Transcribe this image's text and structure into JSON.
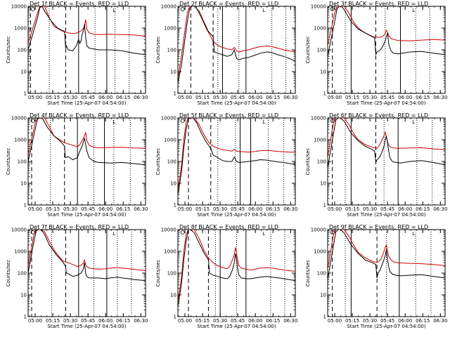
{
  "colors": {
    "events": "#000000",
    "lld": "#d00000",
    "frame": "#000000"
  },
  "chart_data": {
    "type": "line",
    "layout": "3x3 grid of panels",
    "yscale": "log",
    "ylim": [
      1,
      10000
    ],
    "yticks": [
      "1",
      "10",
      "100",
      "1000",
      "10000"
    ],
    "ylabel": "Counts/sec",
    "xlabel": "Start Time (25-Apr-07 04:54:00)",
    "xlim_min": [
      0,
      100
    ],
    "xticks": [
      {
        "label": "05:00",
        "t": 6
      },
      {
        "label": "05:15",
        "t": 21
      },
      {
        "label": "05:30",
        "t": 36
      },
      {
        "label": "05:45",
        "t": 51
      },
      {
        "label": "06:00",
        "t": 66
      },
      {
        "label": "06:15",
        "t": 81
      },
      {
        "label": "06:30",
        "t": 96
      }
    ],
    "legend_text": "BLACK = Events, RED = LLD",
    "series_names": [
      "Events",
      "LLD"
    ],
    "panels": [
      {
        "title": "Det 1f",
        "marker": "L",
        "dashed": [
          2,
          32
        ],
        "dotted": [
          18,
          57,
          74,
          86
        ],
        "solid": [
          43,
          67
        ],
        "events_t": [
          0,
          8,
          10,
          12,
          14,
          20,
          25,
          31,
          32,
          32.6,
          34,
          38,
          41,
          43,
          44,
          45,
          46,
          47,
          48,
          49,
          50,
          52,
          56,
          60,
          70,
          80,
          90,
          100
        ],
        "events_v": [
          100,
          3000,
          9000,
          10000,
          6000,
          2000,
          1000,
          700,
          120,
          150,
          100,
          90,
          150,
          300,
          200,
          260,
          500,
          700,
          1500,
          400,
          150,
          120,
          110,
          100,
          100,
          90,
          70,
          60
        ],
        "lld_t": [
          0,
          8,
          10,
          12,
          14,
          18,
          22,
          26,
          30,
          34,
          40,
          43,
          46,
          48,
          49,
          50,
          52,
          56,
          60,
          70,
          80,
          90,
          100
        ],
        "lld_v": [
          200,
          5000,
          10000,
          10000,
          10000,
          3000,
          1200,
          900,
          700,
          600,
          550,
          650,
          800,
          1200,
          2500,
          900,
          600,
          520,
          500,
          520,
          500,
          480,
          430
        ]
      },
      {
        "title": "Det 2f",
        "marker": "L",
        "dashed": [
          11,
          30
        ],
        "dotted": [
          34,
          52,
          80,
          92
        ],
        "solid": [
          38,
          58
        ],
        "events_t": [
          0,
          3,
          6,
          8,
          10,
          12,
          14,
          18,
          22,
          26,
          30,
          31,
          34,
          38,
          42,
          46,
          48,
          50,
          52,
          55,
          60,
          65,
          70,
          76,
          80,
          85,
          90,
          95,
          100
        ],
        "events_v": [
          3,
          20,
          300,
          2000,
          8000,
          10000,
          10000,
          6000,
          2000,
          700,
          400,
          80,
          70,
          60,
          50,
          60,
          100,
          40,
          35,
          40,
          45,
          55,
          70,
          80,
          75,
          60,
          50,
          40,
          30
        ],
        "lld_t": [
          0,
          3,
          6,
          8,
          10,
          12,
          14,
          16,
          20,
          24,
          28,
          30,
          34,
          38,
          42,
          46,
          48,
          50,
          52,
          56,
          60,
          65,
          70,
          76,
          80,
          85,
          90,
          95,
          100
        ],
        "lld_v": [
          5,
          50,
          800,
          5000,
          10000,
          10000,
          10000,
          8000,
          3000,
          1000,
          400,
          250,
          160,
          130,
          110,
          100,
          130,
          90,
          80,
          90,
          100,
          120,
          140,
          150,
          140,
          120,
          100,
          90,
          80
        ]
      },
      {
        "title": "Det 3f",
        "marker": "L",
        "dashed": [
          4,
          41
        ],
        "dotted": [
          15,
          49,
          75,
          87
        ],
        "solid": [
          20,
          62
        ],
        "events_t": [
          0,
          6,
          8,
          10,
          12,
          14,
          20,
          26,
          32,
          38,
          40,
          41,
          42,
          45,
          47,
          49,
          50,
          51,
          52,
          53,
          54,
          56,
          60,
          70,
          80,
          90,
          100
        ],
        "events_v": [
          50,
          2000,
          8000,
          10000,
          10000,
          7000,
          2000,
          900,
          600,
          400,
          350,
          60,
          80,
          100,
          150,
          250,
          400,
          600,
          200,
          120,
          90,
          70,
          65,
          80,
          85,
          70,
          60
        ],
        "lld_t": [
          0,
          6,
          8,
          10,
          12,
          14,
          18,
          22,
          26,
          32,
          38,
          44,
          47,
          49,
          50,
          51,
          52,
          54,
          56,
          60,
          70,
          80,
          90,
          100
        ],
        "lld_v": [
          150,
          5000,
          10000,
          10000,
          10000,
          10000,
          5000,
          2000,
          1000,
          600,
          420,
          370,
          420,
          550,
          800,
          650,
          450,
          330,
          300,
          270,
          260,
          280,
          300,
          280
        ]
      },
      {
        "title": "Det 4f",
        "marker": "L",
        "dashed": [
          3,
          31
        ],
        "dotted": [
          19,
          56,
          73,
          87
        ],
        "solid": [
          42,
          65
        ],
        "events_t": [
          0,
          6,
          8,
          10,
          12,
          16,
          22,
          28,
          31,
          31.6,
          34,
          38,
          42,
          44,
          46,
          48,
          50,
          52,
          56,
          60,
          70,
          80,
          90,
          100
        ],
        "events_v": [
          100,
          3000,
          9000,
          10000,
          10000,
          4000,
          1500,
          800,
          500,
          150,
          170,
          120,
          150,
          300,
          500,
          1200,
          300,
          150,
          100,
          90,
          85,
          90,
          80,
          70
        ],
        "lld_t": [
          0,
          6,
          8,
          10,
          14,
          18,
          22,
          28,
          32,
          38,
          42,
          44,
          46,
          48,
          49,
          50,
          52,
          56,
          60,
          70,
          80,
          90,
          100
        ],
        "lld_v": [
          200,
          6000,
          10000,
          10000,
          10000,
          4000,
          1500,
          900,
          700,
          550,
          480,
          600,
          900,
          1500,
          2200,
          900,
          550,
          450,
          430,
          440,
          450,
          420,
          400
        ]
      },
      {
        "title": "Det 5f",
        "marker": "L",
        "dashed": [
          9,
          28
        ],
        "dotted": [
          34,
          49,
          77,
          90
        ],
        "solid": [
          53,
          62
        ],
        "events_t": [
          0,
          3,
          5,
          7,
          9,
          11,
          13,
          16,
          20,
          24,
          28,
          30,
          34,
          38,
          42,
          46,
          48,
          50,
          52,
          56,
          60,
          66,
          70,
          76,
          80,
          86,
          90,
          95,
          100
        ],
        "events_v": [
          3,
          30,
          400,
          3000,
          9000,
          10000,
          10000,
          6000,
          2000,
          800,
          400,
          200,
          150,
          110,
          100,
          100,
          160,
          100,
          90,
          95,
          100,
          110,
          120,
          115,
          105,
          95,
          90,
          80,
          75
        ],
        "lld_t": [
          0,
          3,
          5,
          7,
          9,
          11,
          14,
          18,
          22,
          26,
          30,
          34,
          38,
          42,
          46,
          48,
          50,
          52,
          56,
          60,
          66,
          70,
          76,
          80,
          86,
          90,
          95,
          100
        ],
        "lld_v": [
          5,
          60,
          1000,
          6000,
          10000,
          10000,
          10000,
          5000,
          1800,
          800,
          500,
          400,
          350,
          320,
          300,
          360,
          300,
          290,
          280,
          270,
          290,
          310,
          320,
          310,
          290,
          280,
          270,
          260
        ]
      },
      {
        "title": "Det 6f",
        "marker": "L",
        "dashed": [
          4,
          41
        ],
        "dotted": [
          15,
          48,
          76,
          89
        ],
        "solid": [
          20,
          60
        ],
        "events_t": [
          0,
          5,
          7,
          9,
          11,
          14,
          20,
          26,
          32,
          38,
          40,
          41,
          42,
          44,
          46,
          48,
          49,
          50,
          51,
          52,
          53,
          55,
          58,
          62,
          70,
          80,
          90,
          100
        ],
        "events_v": [
          50,
          2000,
          8000,
          10000,
          10000,
          7000,
          2000,
          900,
          500,
          350,
          300,
          90,
          120,
          150,
          250,
          500,
          900,
          1500,
          700,
          300,
          150,
          100,
          90,
          85,
          100,
          110,
          90,
          70
        ],
        "lld_t": [
          0,
          5,
          7,
          9,
          11,
          14,
          18,
          22,
          26,
          32,
          38,
          42,
          44,
          46,
          48,
          49,
          50,
          51,
          52,
          54,
          56,
          60,
          70,
          80,
          90,
          100
        ],
        "lld_v": [
          150,
          6000,
          10000,
          10000,
          10000,
          10000,
          5000,
          2000,
          1000,
          600,
          450,
          400,
          550,
          900,
          1500,
          2200,
          1300,
          800,
          550,
          450,
          420,
          400,
          420,
          430,
          380,
          350
        ]
      },
      {
        "title": "Det 7f",
        "marker": "L",
        "dashed": [
          3,
          32
        ],
        "dotted": [
          20,
          56,
          76,
          88
        ],
        "solid": [
          43,
          67
        ],
        "events_t": [
          0,
          5,
          7,
          9,
          11,
          14,
          18,
          24,
          30,
          32,
          32.6,
          35,
          38,
          42,
          45,
          47,
          48,
          49,
          50,
          52,
          56,
          60,
          66,
          70,
          76,
          80,
          86,
          90,
          95,
          100
        ],
        "events_v": [
          100,
          3000,
          9000,
          10000,
          10000,
          6000,
          2000,
          700,
          300,
          200,
          100,
          90,
          70,
          80,
          100,
          150,
          300,
          100,
          70,
          60,
          60,
          60,
          55,
          60,
          65,
          60,
          55,
          50,
          48,
          45
        ],
        "lld_t": [
          0,
          5,
          7,
          9,
          11,
          14,
          18,
          22,
          26,
          30,
          34,
          38,
          42,
          45,
          47,
          48,
          49,
          50,
          52,
          56,
          60,
          66,
          70,
          76,
          80,
          86,
          90,
          95,
          100
        ],
        "lld_v": [
          200,
          6000,
          10000,
          10000,
          10000,
          8000,
          3000,
          1200,
          600,
          350,
          300,
          250,
          200,
          230,
          280,
          400,
          250,
          200,
          170,
          160,
          150,
          160,
          170,
          180,
          170,
          160,
          150,
          140,
          130
        ]
      },
      {
        "title": "Det 8f",
        "marker": "L",
        "dashed": [
          9,
          26
        ],
        "dotted": [
          32,
          50,
          79,
          91
        ],
        "solid": [
          36,
          58
        ],
        "events_t": [
          0,
          3,
          5,
          7,
          9,
          11,
          14,
          18,
          22,
          26,
          27,
          30,
          34,
          38,
          42,
          44,
          46,
          48,
          49,
          50,
          51,
          52,
          54,
          58,
          62,
          66,
          70,
          76,
          80,
          86,
          90,
          95,
          100
        ],
        "events_v": [
          3,
          30,
          400,
          3000,
          10000,
          10000,
          7000,
          2500,
          900,
          400,
          100,
          80,
          70,
          60,
          55,
          70,
          120,
          300,
          800,
          400,
          150,
          80,
          60,
          55,
          55,
          60,
          65,
          70,
          65,
          60,
          55,
          50,
          45
        ],
        "lld_t": [
          0,
          3,
          5,
          7,
          9,
          11,
          14,
          18,
          22,
          26,
          30,
          34,
          38,
          42,
          44,
          46,
          48,
          49,
          50,
          51,
          52,
          54,
          58,
          62,
          66,
          70,
          76,
          80,
          86,
          90,
          95,
          100
        ],
        "lld_v": [
          5,
          60,
          1000,
          6000,
          10000,
          10000,
          10000,
          4000,
          1200,
          500,
          300,
          220,
          180,
          160,
          200,
          350,
          700,
          1500,
          800,
          350,
          220,
          170,
          150,
          140,
          150,
          170,
          180,
          170,
          150,
          140,
          130,
          120
        ]
      },
      {
        "title": "Det 9f",
        "marker": "L",
        "dashed": [
          4,
          42
        ],
        "dotted": [
          15,
          50,
          75,
          88
        ],
        "solid": [
          20,
          61
        ],
        "events_t": [
          0,
          5,
          7,
          9,
          11,
          14,
          20,
          26,
          32,
          38,
          41,
          42,
          43,
          45,
          47,
          49,
          50,
          51,
          52,
          53,
          55,
          58,
          62,
          70,
          80,
          90,
          100
        ],
        "events_v": [
          50,
          2000,
          8000,
          10000,
          10000,
          7000,
          2000,
          800,
          400,
          300,
          250,
          60,
          100,
          150,
          300,
          600,
          1200,
          400,
          200,
          120,
          90,
          80,
          75,
          80,
          85,
          70,
          60
        ],
        "lld_t": [
          0,
          5,
          7,
          9,
          11,
          14,
          18,
          22,
          26,
          32,
          38,
          42,
          45,
          47,
          49,
          50,
          51,
          52,
          54,
          56,
          60,
          70,
          80,
          90,
          100
        ],
        "lld_v": [
          150,
          6000,
          10000,
          10000,
          10000,
          10000,
          5000,
          2000,
          900,
          500,
          350,
          300,
          400,
          700,
          1500,
          2000,
          1000,
          600,
          400,
          330,
          300,
          280,
          270,
          250,
          220
        ]
      }
    ]
  }
}
